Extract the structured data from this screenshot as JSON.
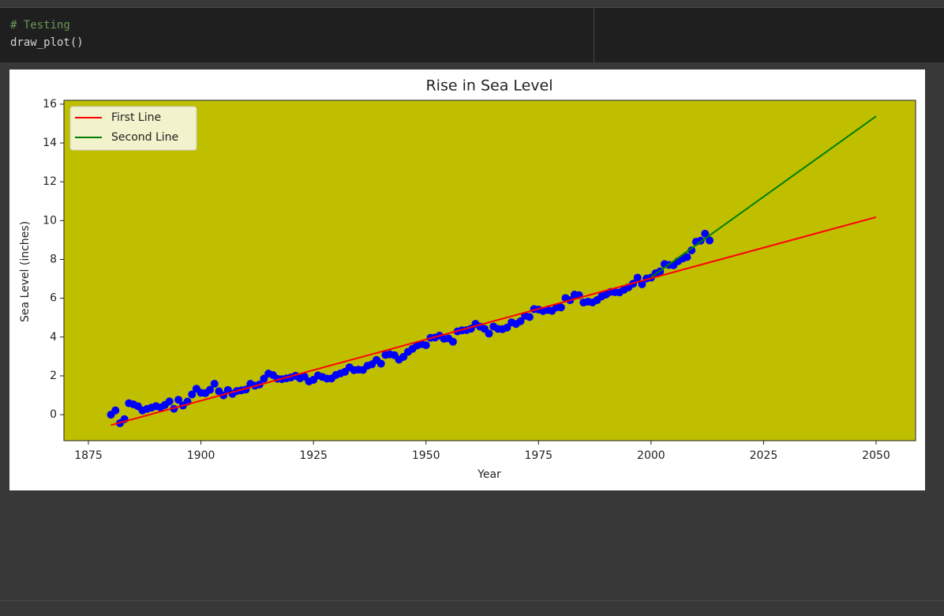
{
  "cell": {
    "lines": [
      "# Testing",
      "draw_plot()"
    ]
  },
  "chart_data": {
    "type": "scatter",
    "title": "Rise in Sea Level",
    "x_label": "Year",
    "y_label": "Sea Level (inches)",
    "xlim": [
      1869.56,
      2058.77
    ],
    "ylim": [
      -1.34,
      16.2
    ],
    "xticks": [
      1875,
      1900,
      1925,
      1950,
      1975,
      2000,
      2025,
      2050
    ],
    "yticks": [
      0,
      2,
      4,
      6,
      8,
      10,
      12,
      14,
      16
    ],
    "background": "#bfbf00",
    "legend": "upper-left",
    "series": [
      {
        "kind": "scatter",
        "color": "#0000ff",
        "x": [
          1880,
          1881,
          1882,
          1883,
          1884,
          1885,
          1886,
          1887,
          1888,
          1889,
          1890,
          1891,
          1892,
          1893,
          1894,
          1895,
          1896,
          1897,
          1898,
          1899,
          1900,
          1901,
          1902,
          1903,
          1904,
          1905,
          1906,
          1907,
          1908,
          1909,
          1910,
          1911,
          1912,
          1913,
          1914,
          1915,
          1916,
          1917,
          1918,
          1919,
          1920,
          1921,
          1922,
          1923,
          1924,
          1925,
          1926,
          1927,
          1928,
          1929,
          1930,
          1931,
          1932,
          1933,
          1934,
          1935,
          1936,
          1937,
          1938,
          1939,
          1940,
          1941,
          1942,
          1943,
          1944,
          1945,
          1946,
          1947,
          1948,
          1949,
          1950,
          1951,
          1952,
          1953,
          1954,
          1955,
          1956,
          1957,
          1958,
          1959,
          1960,
          1961,
          1962,
          1963,
          1964,
          1965,
          1966,
          1967,
          1968,
          1969,
          1970,
          1971,
          1972,
          1973,
          1974,
          1975,
          1976,
          1977,
          1978,
          1979,
          1980,
          1981,
          1982,
          1983,
          1984,
          1985,
          1986,
          1987,
          1988,
          1989,
          1990,
          1991,
          1992,
          1993,
          1994,
          1995,
          1996,
          1997,
          1998,
          1999,
          2000,
          2001,
          2002,
          2003,
          2004,
          2005,
          2006,
          2007,
          2008,
          2009,
          2010,
          2011,
          2012,
          2013
        ],
        "values": [
          0.0,
          0.22,
          -0.441,
          -0.232,
          0.59,
          0.531,
          0.437,
          0.217,
          0.299,
          0.362,
          0.441,
          0.374,
          0.5,
          0.685,
          0.303,
          0.768,
          0.469,
          0.673,
          1.043,
          1.338,
          1.126,
          1.11,
          1.283,
          1.594,
          1.209,
          0.996,
          1.272,
          1.075,
          1.22,
          1.256,
          1.295,
          1.591,
          1.492,
          1.555,
          1.858,
          2.12,
          2.043,
          1.85,
          1.831,
          1.87,
          1.917,
          2.005,
          1.87,
          1.961,
          1.713,
          1.797,
          2.02,
          1.941,
          1.858,
          1.866,
          2.047,
          2.126,
          2.209,
          2.441,
          2.295,
          2.319,
          2.303,
          2.52,
          2.598,
          2.819,
          2.63,
          3.079,
          3.11,
          3.067,
          2.838,
          2.98,
          3.236,
          3.394,
          3.567,
          3.634,
          3.579,
          3.961,
          3.972,
          4.071,
          3.909,
          3.925,
          3.76,
          4.291,
          4.346,
          4.358,
          4.429,
          4.681,
          4.539,
          4.425,
          4.177,
          4.543,
          4.421,
          4.409,
          4.484,
          4.756,
          4.673,
          4.815,
          5.098,
          5.035,
          5.443,
          5.418,
          5.346,
          5.394,
          5.35,
          5.531,
          5.528,
          6.012,
          5.898,
          6.189,
          6.159,
          5.78,
          5.823,
          5.783,
          5.902,
          6.091,
          6.195,
          6.327,
          6.311,
          6.303,
          6.436,
          6.567,
          6.747,
          7.061,
          6.721,
          7.017,
          7.062,
          7.288,
          7.382,
          7.759,
          7.714,
          7.702,
          7.908,
          8.046,
          8.122,
          8.468,
          8.911,
          8.965,
          9.327,
          8.98
        ]
      },
      {
        "kind": "line",
        "name": "First Line",
        "color": "#ff0000",
        "x": [
          1880,
          2050
        ],
        "values": [
          -0.54,
          10.18
        ]
      },
      {
        "kind": "line",
        "name": "Second Line",
        "color": "#008000",
        "x": [
          2000,
          2050
        ],
        "values": [
          7.08,
          15.38
        ]
      }
    ]
  }
}
